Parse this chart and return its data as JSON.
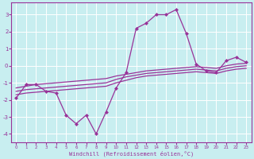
{
  "xlabel": "Windchill (Refroidissement éolien,°C)",
  "bg_color": "#c8eef0",
  "grid_color": "#ffffff",
  "line_color": "#993399",
  "marker_color": "#993399",
  "xlim": [
    -0.5,
    23.5
  ],
  "ylim": [
    -4.5,
    3.7
  ],
  "yticks": [
    -4,
    -3,
    -2,
    -1,
    0,
    1,
    2,
    3
  ],
  "xticks": [
    0,
    1,
    2,
    3,
    4,
    5,
    6,
    7,
    8,
    9,
    10,
    11,
    12,
    13,
    14,
    15,
    16,
    17,
    18,
    19,
    20,
    21,
    22,
    23
  ],
  "line1_x": [
    0,
    1,
    2,
    3,
    4,
    5,
    6,
    7,
    8,
    9,
    10,
    11,
    12,
    13,
    14,
    15,
    16,
    17,
    18,
    19,
    20,
    21,
    22,
    23
  ],
  "line1_y": [
    -1.9,
    -1.1,
    -1.1,
    -1.5,
    -1.6,
    -2.9,
    -3.4,
    -2.9,
    -4.0,
    -2.7,
    -1.3,
    -0.4,
    2.2,
    2.5,
    3.0,
    3.0,
    3.3,
    1.9,
    0.1,
    -0.3,
    -0.4,
    0.3,
    0.5,
    0.2
  ],
  "line2_x": [
    0,
    1,
    2,
    3,
    4,
    5,
    6,
    7,
    8,
    9,
    10,
    11,
    12,
    13,
    14,
    15,
    16,
    17,
    18,
    19,
    20,
    21,
    22,
    23
  ],
  "line2_y": [
    -1.3,
    -1.2,
    -1.1,
    -1.05,
    -1.0,
    -0.95,
    -0.9,
    -0.85,
    -0.8,
    -0.75,
    -0.6,
    -0.5,
    -0.4,
    -0.3,
    -0.25,
    -0.2,
    -0.15,
    -0.1,
    -0.05,
    -0.1,
    -0.15,
    0.0,
    0.1,
    0.15
  ],
  "line3_x": [
    0,
    1,
    2,
    3,
    4,
    5,
    6,
    7,
    8,
    9,
    10,
    11,
    12,
    13,
    14,
    15,
    16,
    17,
    18,
    19,
    20,
    21,
    22,
    23
  ],
  "line3_y": [
    -1.5,
    -1.4,
    -1.35,
    -1.3,
    -1.25,
    -1.2,
    -1.15,
    -1.1,
    -1.05,
    -1.0,
    -0.8,
    -0.65,
    -0.55,
    -0.45,
    -0.4,
    -0.35,
    -0.3,
    -0.25,
    -0.2,
    -0.25,
    -0.3,
    -0.15,
    -0.05,
    0.0
  ],
  "line4_x": [
    0,
    1,
    2,
    3,
    4,
    5,
    6,
    7,
    8,
    9,
    10,
    11,
    12,
    13,
    14,
    15,
    16,
    17,
    18,
    19,
    20,
    21,
    22,
    23
  ],
  "line4_y": [
    -1.7,
    -1.6,
    -1.55,
    -1.5,
    -1.45,
    -1.4,
    -1.35,
    -1.3,
    -1.25,
    -1.2,
    -1.0,
    -0.85,
    -0.7,
    -0.6,
    -0.55,
    -0.5,
    -0.45,
    -0.4,
    -0.35,
    -0.4,
    -0.45,
    -0.3,
    -0.2,
    -0.15
  ]
}
